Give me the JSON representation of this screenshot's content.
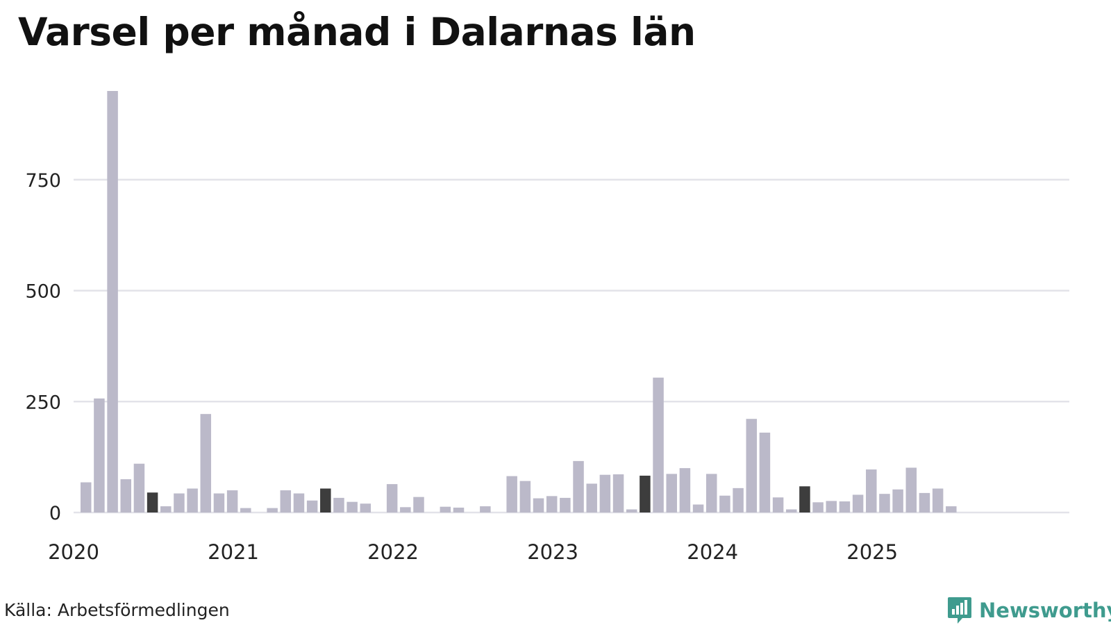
{
  "title": "Varsel per månad i Dalarnas län",
  "source": "Källa: Arbetsförmedlingen",
  "brand": "Newsworthy",
  "colors": {
    "default": "#bbb9c9",
    "highlight": "#3d3d3d",
    "latest": "#1e9486",
    "grid": "#e3e3e9",
    "brand": "#3f9b8e"
  },
  "chart_data": {
    "type": "bar",
    "title": "Varsel per månad i Dalarnas län",
    "xlabel": "",
    "ylabel": "",
    "ylim": [
      0,
      950
    ],
    "y_ticks": [
      "0",
      "250",
      "500",
      "750"
    ],
    "x_ticks": [
      "2020",
      "2021",
      "2022",
      "2023",
      "2024",
      "2025"
    ],
    "grid": true,
    "categories": [
      "2020-01",
      "2020-02",
      "2020-03",
      "2020-04",
      "2020-05",
      "2020-06",
      "2020-07",
      "2020-08",
      "2020-09",
      "2020-10",
      "2020-11",
      "2020-12",
      "2021-01",
      "2021-02",
      "2021-03",
      "2021-04",
      "2021-05",
      "2021-06",
      "2021-07",
      "2021-08",
      "2021-09",
      "2021-10",
      "2021-11",
      "2021-12",
      "2022-01",
      "2022-02",
      "2022-03",
      "2022-04",
      "2022-05",
      "2022-06",
      "2022-07",
      "2022-08",
      "2022-09",
      "2022-10",
      "2022-11",
      "2022-12",
      "2023-01",
      "2023-02",
      "2023-03",
      "2023-04",
      "2023-05",
      "2023-06",
      "2023-07",
      "2023-08",
      "2023-09",
      "2023-10",
      "2023-11",
      "2023-12",
      "2024-01",
      "2024-02",
      "2024-03",
      "2024-04",
      "2024-05",
      "2024-06",
      "2024-07",
      "2024-08",
      "2024-09",
      "2024-10",
      "2024-11",
      "2024-12",
      "2025-01",
      "2025-02",
      "2025-03",
      "2025-04",
      "2025-05",
      "2025-06",
      "2025-07"
    ],
    "values": [
      68,
      257,
      950,
      75,
      110,
      45,
      14,
      43,
      54,
      222,
      43,
      50,
      10,
      0,
      10,
      50,
      43,
      27,
      54,
      33,
      24,
      20,
      0,
      64,
      12,
      35,
      0,
      13,
      11,
      0,
      14,
      0,
      82,
      71,
      32,
      37,
      33,
      116,
      65,
      85,
      86,
      7,
      83,
      304,
      87,
      100,
      18,
      87,
      38,
      55,
      211,
      180,
      34,
      7,
      59,
      23,
      26,
      25,
      40,
      97,
      42,
      52,
      101,
      44,
      54,
      14,
      0
    ],
    "highlight_months": [
      "2020-06",
      "2021-07",
      "2023-07",
      "2024-07"
    ],
    "latest_month": "2025-07"
  }
}
